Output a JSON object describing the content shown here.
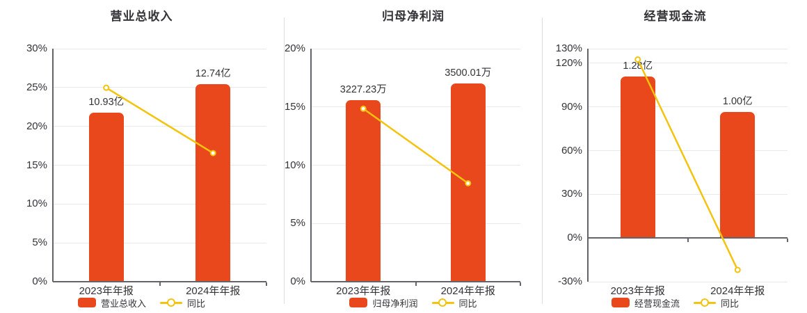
{
  "colors": {
    "bar": "#e8481c",
    "line": "#f3c30e",
    "axis": "#63636b",
    "grid": "#e6e9f0",
    "text": "#333338",
    "divider": "#dcdde3",
    "background": "#ffffff",
    "marker_fill": "#ffffff"
  },
  "chart_data": [
    {
      "type": "bar+line",
      "title": "营业总收入",
      "categories": [
        "2023年年报",
        "2024年年报"
      ],
      "bar_series": {
        "name": "营业总收入",
        "values": [
          10.93,
          12.74
        ],
        "unit": "亿",
        "labels": [
          "10.93亿",
          "12.74亿"
        ],
        "height_on_pct_axis": [
          21.8,
          25.4
        ]
      },
      "line_series": {
        "name": "同比",
        "values_pct": [
          24.97,
          16.56
        ]
      },
      "y_axis": {
        "min": 0,
        "max": 30,
        "ticks_pct": [
          0,
          5,
          10,
          15,
          20,
          25,
          30
        ],
        "label_suffix": "%"
      },
      "legend": [
        "营业总收入",
        "同比"
      ],
      "grid": true,
      "legend_position": "bottom"
    },
    {
      "type": "bar+line",
      "title": "归母净利润",
      "categories": [
        "2023年年报",
        "2024年年报"
      ],
      "bar_series": {
        "name": "归母净利润",
        "values": [
          3227.23,
          3500.01
        ],
        "unit": "万",
        "labels": [
          "3227.23万",
          "3500.01万"
        ],
        "height_on_pct_axis": [
          15.6,
          17.0
        ]
      },
      "line_series": {
        "name": "同比",
        "values_pct": [
          14.85,
          8.45
        ]
      },
      "y_axis": {
        "min": 0,
        "max": 20,
        "ticks_pct": [
          0,
          5,
          10,
          15,
          20
        ],
        "label_suffix": "%"
      },
      "legend": [
        "归母净利润",
        "同比"
      ],
      "grid": true,
      "legend_position": "bottom"
    },
    {
      "type": "bar+line",
      "title": "经营现金流",
      "categories": [
        "2023年年报",
        "2024年年报"
      ],
      "bar_series": {
        "name": "经营现金流",
        "values": [
          1.28,
          1.0
        ],
        "unit": "亿",
        "labels": [
          "1.28亿",
          "1.00亿"
        ],
        "height_on_pct_axis": [
          111.0,
          86.7
        ]
      },
      "line_series": {
        "name": "同比",
        "values_pct": [
          122.6,
          -21.9
        ]
      },
      "y_axis": {
        "min": -30,
        "max": 130,
        "ticks_pct": [
          -30,
          0,
          30,
          60,
          90,
          120,
          130
        ],
        "label_suffix": "%"
      },
      "legend": [
        "经营现金流",
        "同比"
      ],
      "grid": true,
      "legend_position": "bottom"
    }
  ]
}
